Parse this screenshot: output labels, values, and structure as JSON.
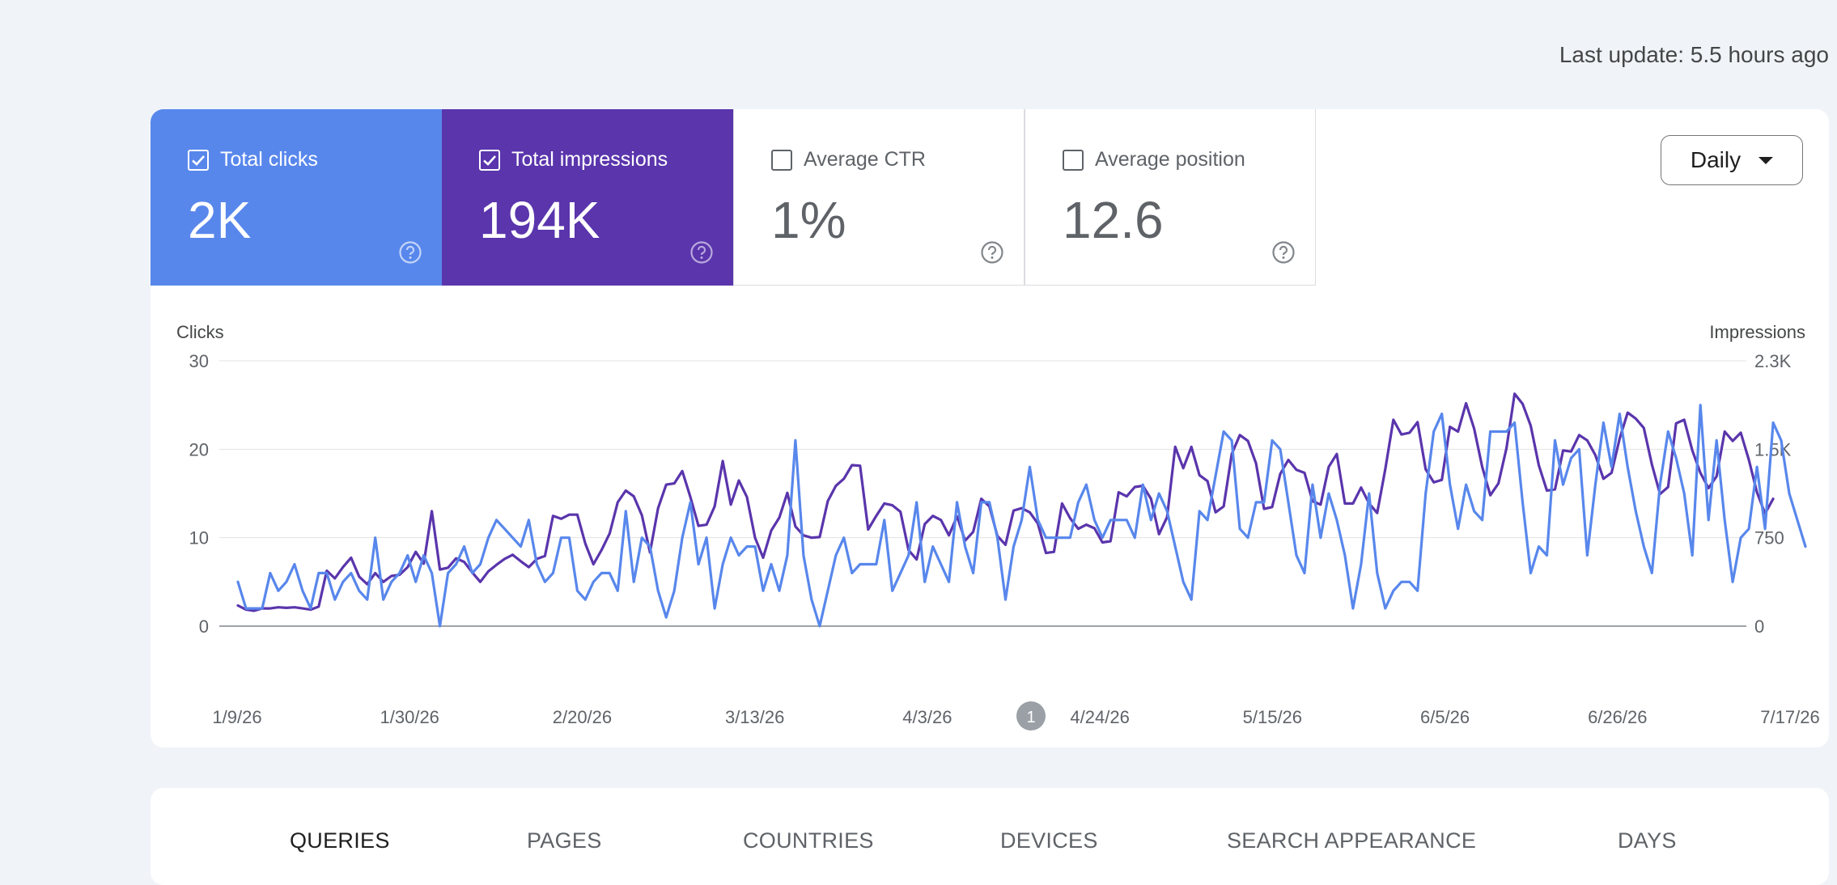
{
  "header": {
    "last_update": "Last update: 5.5 hours ago"
  },
  "metrics": [
    {
      "label": "Total clicks",
      "value": "2K",
      "checked": true,
      "color": "#5887ec"
    },
    {
      "label": "Total impressions",
      "value": "194K",
      "checked": true,
      "color": "#5a35ac"
    },
    {
      "label": "Average CTR",
      "value": "1%",
      "checked": false,
      "color": "#ffffff"
    },
    {
      "label": "Average position",
      "value": "12.6",
      "checked": false,
      "color": "#ffffff"
    }
  ],
  "granularity": {
    "selected": "Daily"
  },
  "chart_data": {
    "type": "line",
    "y_left": {
      "label": "Clicks",
      "ticks": [
        "30",
        "20",
        "10",
        "0"
      ],
      "range": [
        0,
        30
      ]
    },
    "y_right": {
      "label": "Impressions",
      "ticks": [
        "2.3K",
        "1.5K",
        "750",
        "0"
      ],
      "range": [
        0,
        2250
      ]
    },
    "x_ticks": [
      "1/9/26",
      "1/30/26",
      "2/20/26",
      "3/13/26",
      "4/3/26",
      "4/24/26",
      "5/15/26",
      "6/5/26",
      "6/26/26",
      "7/17/26"
    ],
    "annotation": {
      "label": "1",
      "near": "4/24/26"
    },
    "grid": true,
    "series": [
      {
        "name": "Total clicks",
        "axis": "left",
        "color": "#5887ec",
        "values": [
          5,
          2,
          2,
          2,
          6,
          4,
          5,
          7,
          4,
          2,
          6,
          6,
          3,
          5,
          6,
          4,
          3,
          10,
          3,
          5,
          6,
          8,
          5,
          8,
          6,
          0,
          6,
          7,
          9,
          6,
          7,
          10,
          12,
          11,
          10,
          9,
          12,
          7,
          5,
          6,
          10,
          10,
          4,
          3,
          5,
          6,
          6,
          4,
          13,
          5,
          10,
          9,
          4,
          1,
          4,
          10,
          14,
          7,
          10,
          2,
          7,
          10,
          8,
          9,
          9,
          4,
          7,
          4,
          8,
          21,
          8,
          3,
          0,
          4,
          8,
          10,
          6,
          7,
          7,
          7,
          12,
          4,
          6,
          8,
          14,
          5,
          9,
          7,
          5,
          14,
          9,
          6,
          14,
          14,
          10,
          3,
          9,
          12,
          18,
          12,
          10,
          10,
          10,
          10,
          14,
          16,
          12,
          10,
          12,
          12,
          12,
          10,
          16,
          12,
          15,
          13,
          9,
          5,
          3,
          13,
          12,
          17,
          22,
          21,
          11,
          10,
          14,
          14,
          21,
          20,
          14,
          8,
          6,
          16,
          10,
          15,
          12,
          8,
          2,
          7,
          15,
          6,
          2,
          4,
          5,
          5,
          4,
          15,
          22,
          24,
          16,
          11,
          16,
          13,
          12,
          22,
          22,
          22,
          23,
          14,
          6,
          9,
          8,
          21,
          16,
          19,
          20,
          8,
          16,
          23,
          18,
          24,
          18,
          13,
          9,
          6,
          16,
          22,
          19,
          15,
          8,
          25,
          12,
          21,
          12,
          5,
          10,
          11,
          18,
          11,
          23,
          21,
          15,
          12,
          9
        ]
      },
      {
        "name": "Total impressions",
        "axis": "right",
        "color": "#5a35ac",
        "values": [
          175,
          140,
          130,
          150,
          150,
          160,
          155,
          160,
          150,
          140,
          165,
          470,
          405,
          500,
          580,
          420,
          355,
          450,
          375,
          425,
          435,
          500,
          630,
          530,
          975,
          480,
          495,
          575,
          545,
          455,
          375,
          465,
          520,
          570,
          605,
          550,
          500,
          570,
          595,
          935,
          910,
          945,
          945,
          700,
          525,
          645,
          785,
          1050,
          1150,
          1100,
          940,
          625,
          1000,
          1200,
          1210,
          1315,
          1095,
          850,
          860,
          1015,
          1400,
          1030,
          1235,
          1095,
          750,
          580,
          810,
          920,
          1130,
          845,
          770,
          750,
          755,
          1060,
          1190,
          1250,
          1365,
          1360,
          820,
          935,
          1040,
          1025,
          970,
          645,
          565,
          865,
          935,
          900,
          770,
          930,
          725,
          800,
          1080,
          1015,
          765,
          690,
          980,
          1000,
          965,
          870,
          620,
          630,
          1040,
          915,
          825,
          860,
          830,
          710,
          720,
          1135,
          1100,
          1180,
          1190,
          1080,
          780,
          925,
          1520,
          1340,
          1520,
          1280,
          1230,
          965,
          1015,
          1460,
          1620,
          1570,
          1380,
          995,
          1010,
          1290,
          1410,
          1325,
          1300,
          1060,
          1030,
          1350,
          1460,
          1040,
          1040,
          1175,
          1040,
          960,
          1330,
          1750,
          1625,
          1640,
          1730,
          1330,
          1220,
          1240,
          1690,
          1650,
          1890,
          1675,
          1350,
          1110,
          1210,
          1510,
          1970,
          1885,
          1700,
          1365,
          1150,
          1160,
          1490,
          1480,
          1620,
          1575,
          1450,
          1250,
          1300,
          1590,
          1810,
          1760,
          1680,
          1370,
          1120,
          1180,
          1720,
          1750,
          1490,
          1300,
          1170,
          1270,
          1650,
          1570,
          1640,
          1410,
          1135,
          955,
          1080
        ]
      }
    ]
  },
  "tabs": [
    {
      "label": "QUERIES",
      "active": true
    },
    {
      "label": "PAGES",
      "active": false
    },
    {
      "label": "COUNTRIES",
      "active": false
    },
    {
      "label": "DEVICES",
      "active": false
    },
    {
      "label": "SEARCH APPEARANCE",
      "active": false
    },
    {
      "label": "DAYS",
      "active": false
    }
  ]
}
